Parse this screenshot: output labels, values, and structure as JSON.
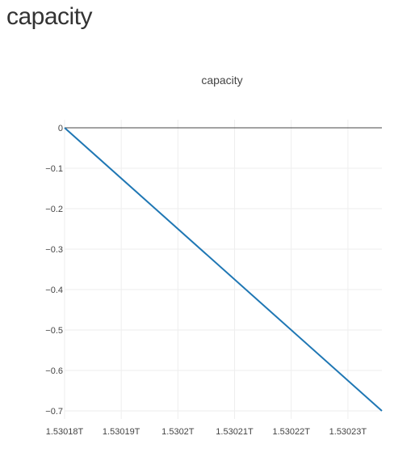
{
  "page": {
    "heading": "capacity"
  },
  "chart_data": {
    "type": "line",
    "title": "capacity",
    "xlabel": "",
    "ylabel": "",
    "x_ticks": [
      1.53018,
      1.53019,
      1.5302,
      1.53021,
      1.53022,
      1.53023
    ],
    "x_tick_labels": [
      "1.53018T",
      "1.53019T",
      "1.5302T",
      "1.53021T",
      "1.53022T",
      "1.53023T"
    ],
    "y_ticks": [
      0,
      -0.1,
      -0.2,
      -0.3,
      -0.4,
      -0.5,
      -0.6,
      -0.7
    ],
    "y_tick_labels": [
      "0",
      "−0.1",
      "−0.2",
      "−0.3",
      "−0.4",
      "−0.5",
      "−0.6",
      "−0.7"
    ],
    "xlim": [
      1.53018,
      1.530236
    ],
    "ylim": [
      -0.72,
      0.02
    ],
    "grid": true,
    "series": [
      {
        "x": [
          1.53018,
          1.530236
        ],
        "values": [
          0,
          -0.7
        ],
        "color": "#1f77b4"
      }
    ],
    "zero_line_color": "#444444",
    "grid_color": "#eeeeee"
  }
}
